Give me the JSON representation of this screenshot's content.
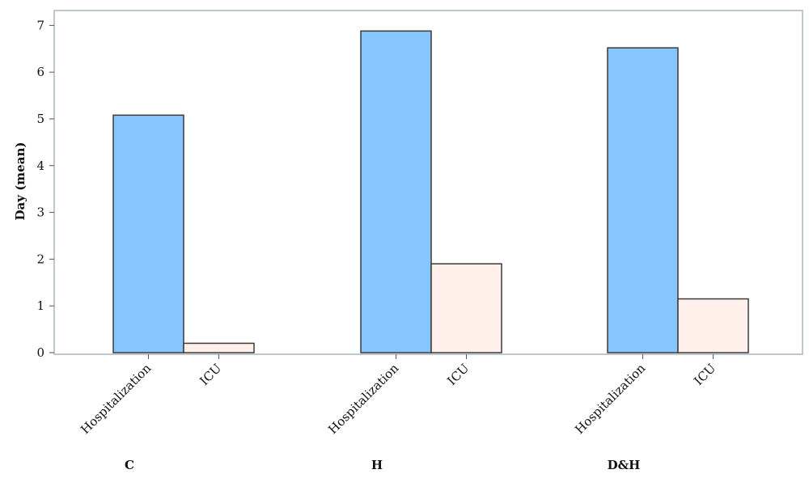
{
  "chart_data": {
    "type": "bar",
    "ylabel": "Day (mean)",
    "xlabel": "",
    "ylim": [
      0,
      7.35
    ],
    "yticks": [
      0,
      1,
      2,
      3,
      4,
      5,
      6,
      7
    ],
    "grid": false,
    "groups": [
      {
        "name": "C",
        "bars": [
          {
            "label": "Hospitalization",
            "value": 5.08,
            "color": "#87c5ff"
          },
          {
            "label": "ICU",
            "value": 0.2,
            "color": "#fff0ec"
          }
        ]
      },
      {
        "name": "H",
        "bars": [
          {
            "label": "Hospitalization",
            "value": 6.88,
            "color": "#87c5ff"
          },
          {
            "label": "ICU",
            "value": 1.9,
            "color": "#fff0ec"
          }
        ]
      },
      {
        "name": "D&H",
        "bars": [
          {
            "label": "Hospitalization",
            "value": 6.52,
            "color": "#87c5ff"
          },
          {
            "label": "ICU",
            "value": 1.15,
            "color": "#fff0ec"
          }
        ]
      }
    ]
  }
}
